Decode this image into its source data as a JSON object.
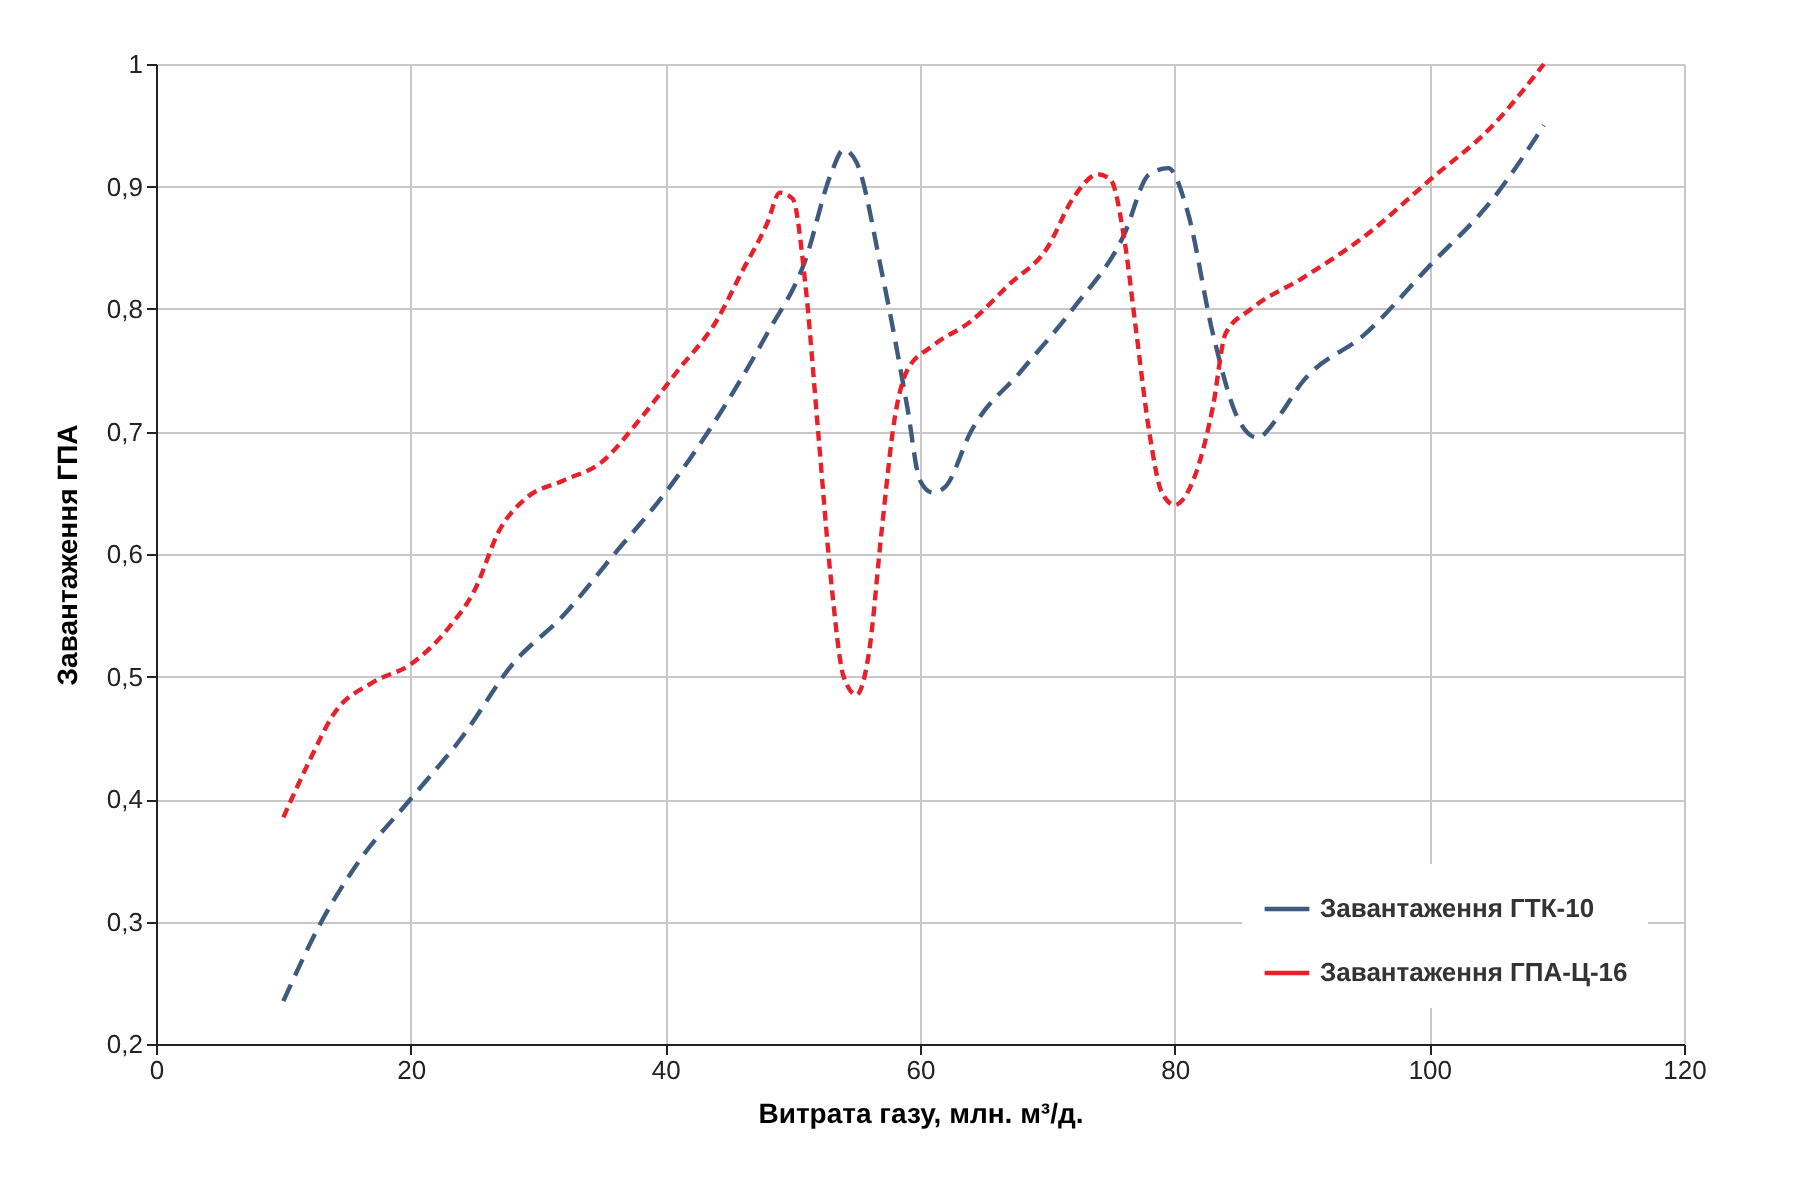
{
  "chart_data": {
    "type": "line",
    "xlabel": "Витрата газу, млн. м³/д.",
    "ylabel": "Завантаження ГПА",
    "xlim": [
      0,
      120
    ],
    "xticks": [
      0,
      20,
      40,
      60,
      80,
      100,
      120
    ],
    "ylim": [
      0.2,
      1
    ],
    "yticks": [
      {
        "value": 0.2,
        "label": "0,2"
      },
      {
        "value": 0.3,
        "label": "0,3"
      },
      {
        "value": 0.4,
        "label": "0,4"
      },
      {
        "value": 0.5,
        "label": "0,5"
      },
      {
        "value": 0.6,
        "label": "0,6"
      },
      {
        "value": 0.7,
        "label": "0,7"
      },
      {
        "value": 0.8,
        "label": "0,8"
      },
      {
        "value": 0.9,
        "label": "0,9"
      },
      {
        "value": 1,
        "label": "1"
      }
    ],
    "grid": true,
    "legend": "bottom right",
    "line_style": "dashed",
    "marker": "none",
    "series": [
      {
        "name": "Завантаження ГТК-10",
        "color": "#3f5a7f",
        "x": [
          10,
          13,
          16,
          20,
          24,
          28,
          32,
          36,
          40,
          44,
          48,
          51,
          53,
          54,
          55,
          57,
          59,
          60,
          61,
          62,
          64,
          68,
          72,
          76,
          78,
          79.5,
          81,
          83,
          85,
          86.5,
          88,
          90,
          95,
          100,
          105,
          109
        ],
        "values": [
          0.235,
          0.3,
          0.35,
          0.4,
          0.45,
          0.51,
          0.55,
          0.6,
          0.65,
          0.71,
          0.78,
          0.84,
          0.91,
          0.93,
          0.92,
          0.83,
          0.72,
          0.66,
          0.65,
          0.655,
          0.7,
          0.75,
          0.8,
          0.86,
          0.91,
          0.915,
          0.88,
          0.78,
          0.71,
          0.695,
          0.71,
          0.74,
          0.78,
          0.835,
          0.89,
          0.95
        ]
      },
      {
        "name": "Завантаження ГПА-Ц-16",
        "color": "#e8202a",
        "x": [
          10,
          12,
          14,
          17,
          20,
          23,
          25,
          27,
          29,
          32,
          35,
          38,
          41,
          44,
          46,
          48,
          49,
          50,
          51,
          52,
          53,
          54,
          55,
          56,
          57,
          58,
          59,
          61,
          64,
          67,
          70,
          72,
          74,
          75,
          76,
          77,
          78,
          79,
          80,
          81,
          83,
          84,
          86,
          90,
          95,
          100,
          105,
          109
        ],
        "values": [
          0.385,
          0.43,
          0.47,
          0.495,
          0.51,
          0.54,
          0.57,
          0.62,
          0.645,
          0.66,
          0.675,
          0.71,
          0.75,
          0.79,
          0.83,
          0.87,
          0.895,
          0.89,
          0.82,
          0.7,
          0.58,
          0.5,
          0.485,
          0.52,
          0.62,
          0.71,
          0.75,
          0.77,
          0.79,
          0.82,
          0.85,
          0.89,
          0.91,
          0.905,
          0.86,
          0.78,
          0.7,
          0.65,
          0.64,
          0.65,
          0.72,
          0.78,
          0.8,
          0.825,
          0.86,
          0.905,
          0.95,
          1.0
        ]
      }
    ]
  }
}
